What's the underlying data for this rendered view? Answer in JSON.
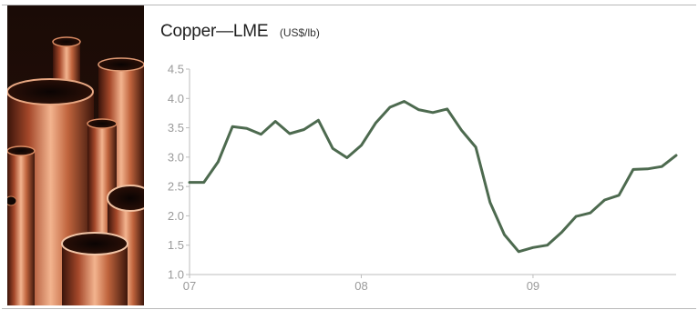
{
  "chart_data": {
    "type": "line",
    "title": "Copper—LME",
    "unit": "(US$/lb)",
    "xlabel": "",
    "ylabel": "",
    "x_ticks": [
      "07",
      "08",
      "09"
    ],
    "y_ticks": [
      "4.5",
      "4.0",
      "3.5",
      "3.0",
      "2.5",
      "2.0",
      "1.5",
      "1.0"
    ],
    "ylim": [
      1.0,
      4.5
    ],
    "xlim": [
      "2007-01",
      "2009-11"
    ],
    "grid": false,
    "line_color": "#4d6a4f",
    "x": [
      "2007-01",
      "2007-02",
      "2007-03",
      "2007-04",
      "2007-05",
      "2007-06",
      "2007-07",
      "2007-08",
      "2007-09",
      "2007-10",
      "2007-11",
      "2007-12",
      "2008-01",
      "2008-02",
      "2008-03",
      "2008-04",
      "2008-05",
      "2008-06",
      "2008-07",
      "2008-08",
      "2008-09",
      "2008-10",
      "2008-11",
      "2008-12",
      "2009-01",
      "2009-02",
      "2009-03",
      "2009-04",
      "2009-05",
      "2009-06",
      "2009-07",
      "2009-08",
      "2009-09",
      "2009-10",
      "2009-11"
    ],
    "values": [
      2.57,
      2.57,
      2.92,
      3.52,
      3.49,
      3.39,
      3.61,
      3.4,
      3.47,
      3.63,
      3.15,
      2.99,
      3.2,
      3.58,
      3.85,
      3.95,
      3.81,
      3.76,
      3.82,
      3.46,
      3.17,
      2.23,
      1.68,
      1.39,
      1.46,
      1.5,
      1.72,
      1.99,
      2.05,
      2.27,
      2.35,
      2.79,
      2.8,
      2.84,
      3.03
    ]
  }
}
